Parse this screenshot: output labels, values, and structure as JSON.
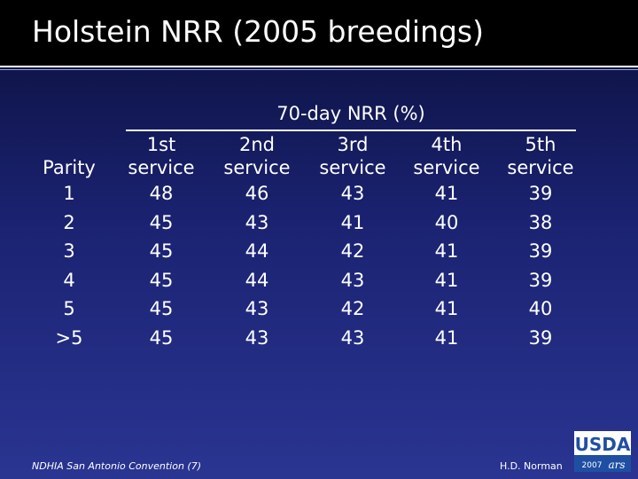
{
  "title": "Holstein NRR (2005 breedings)",
  "table": {
    "group_header": "70-day NRR (%)",
    "parity_header": "Parity",
    "columns": [
      {
        "line1": "1st",
        "line2": "service"
      },
      {
        "line1": "2nd",
        "line2": "service"
      },
      {
        "line1": "3rd",
        "line2": "service"
      },
      {
        "line1": "4th",
        "line2": "service"
      },
      {
        "line1": "5th",
        "line2": "service"
      }
    ],
    "rows": [
      {
        "parity": "1",
        "values": [
          "48",
          "46",
          "43",
          "41",
          "39"
        ]
      },
      {
        "parity": "2",
        "values": [
          "45",
          "43",
          "41",
          "40",
          "38"
        ]
      },
      {
        "parity": "3",
        "values": [
          "45",
          "44",
          "42",
          "41",
          "39"
        ]
      },
      {
        "parity": "4",
        "values": [
          "45",
          "44",
          "43",
          "41",
          "39"
        ]
      },
      {
        "parity": "5",
        "values": [
          "45",
          "43",
          "42",
          "41",
          "40"
        ]
      },
      {
        "parity": ">5",
        "values": [
          "45",
          "43",
          "43",
          "41",
          "39"
        ]
      }
    ]
  },
  "footer": {
    "left": "NDHIA San Antonio Convention (7)",
    "right": "H.D. Norman"
  },
  "logo": {
    "text": "USDA",
    "year": "2007"
  },
  "colors": {
    "background_top": "#0b0f3a",
    "background_bottom": "#2a3592",
    "text": "#ffffff",
    "logo_blue": "#1f4fa3"
  }
}
